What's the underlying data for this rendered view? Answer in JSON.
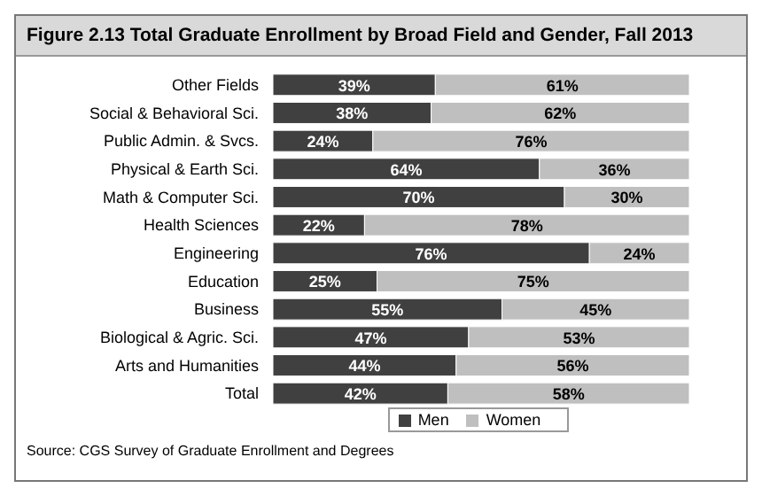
{
  "chart_data": {
    "type": "bar",
    "orientation": "horizontal",
    "stacked": true,
    "title": "Figure 2.13  Total Graduate Enrollment by Broad Field and Gender, Fall 2013",
    "categories": [
      "Other Fields",
      "Social & Behavioral Sci.",
      "Public Admin. & Svcs.",
      "Physical & Earth Sci.",
      "Math & Computer Sci.",
      "Health Sciences",
      "Engineering",
      "Education",
      "Business",
      "Biological & Agric. Sci.",
      "Arts and Humanities",
      "Total"
    ],
    "xlim": [
      0,
      100
    ],
    "series": [
      {
        "name": "Men",
        "color": "#404040",
        "values": [
          39,
          38,
          24,
          64,
          70,
          22,
          76,
          25,
          55,
          47,
          44,
          42
        ],
        "value_labels": [
          "39%",
          "38%",
          "24%",
          "64%",
          "70%",
          "22%",
          "76%",
          "25%",
          "55%",
          "47%",
          "44%",
          "42%"
        ]
      },
      {
        "name": "Women",
        "color": "#bfbfbf",
        "values": [
          61,
          62,
          76,
          36,
          30,
          78,
          24,
          75,
          45,
          53,
          56,
          58
        ],
        "value_labels": [
          "61%",
          "62%",
          "76%",
          "36%",
          "30%",
          "78%",
          "24%",
          "75%",
          "45%",
          "53%",
          "56%",
          "58%"
        ]
      }
    ],
    "legend": "bottom",
    "annotations": [
      "Source: CGS Survey of Graduate Enrollment and Degrees"
    ]
  }
}
